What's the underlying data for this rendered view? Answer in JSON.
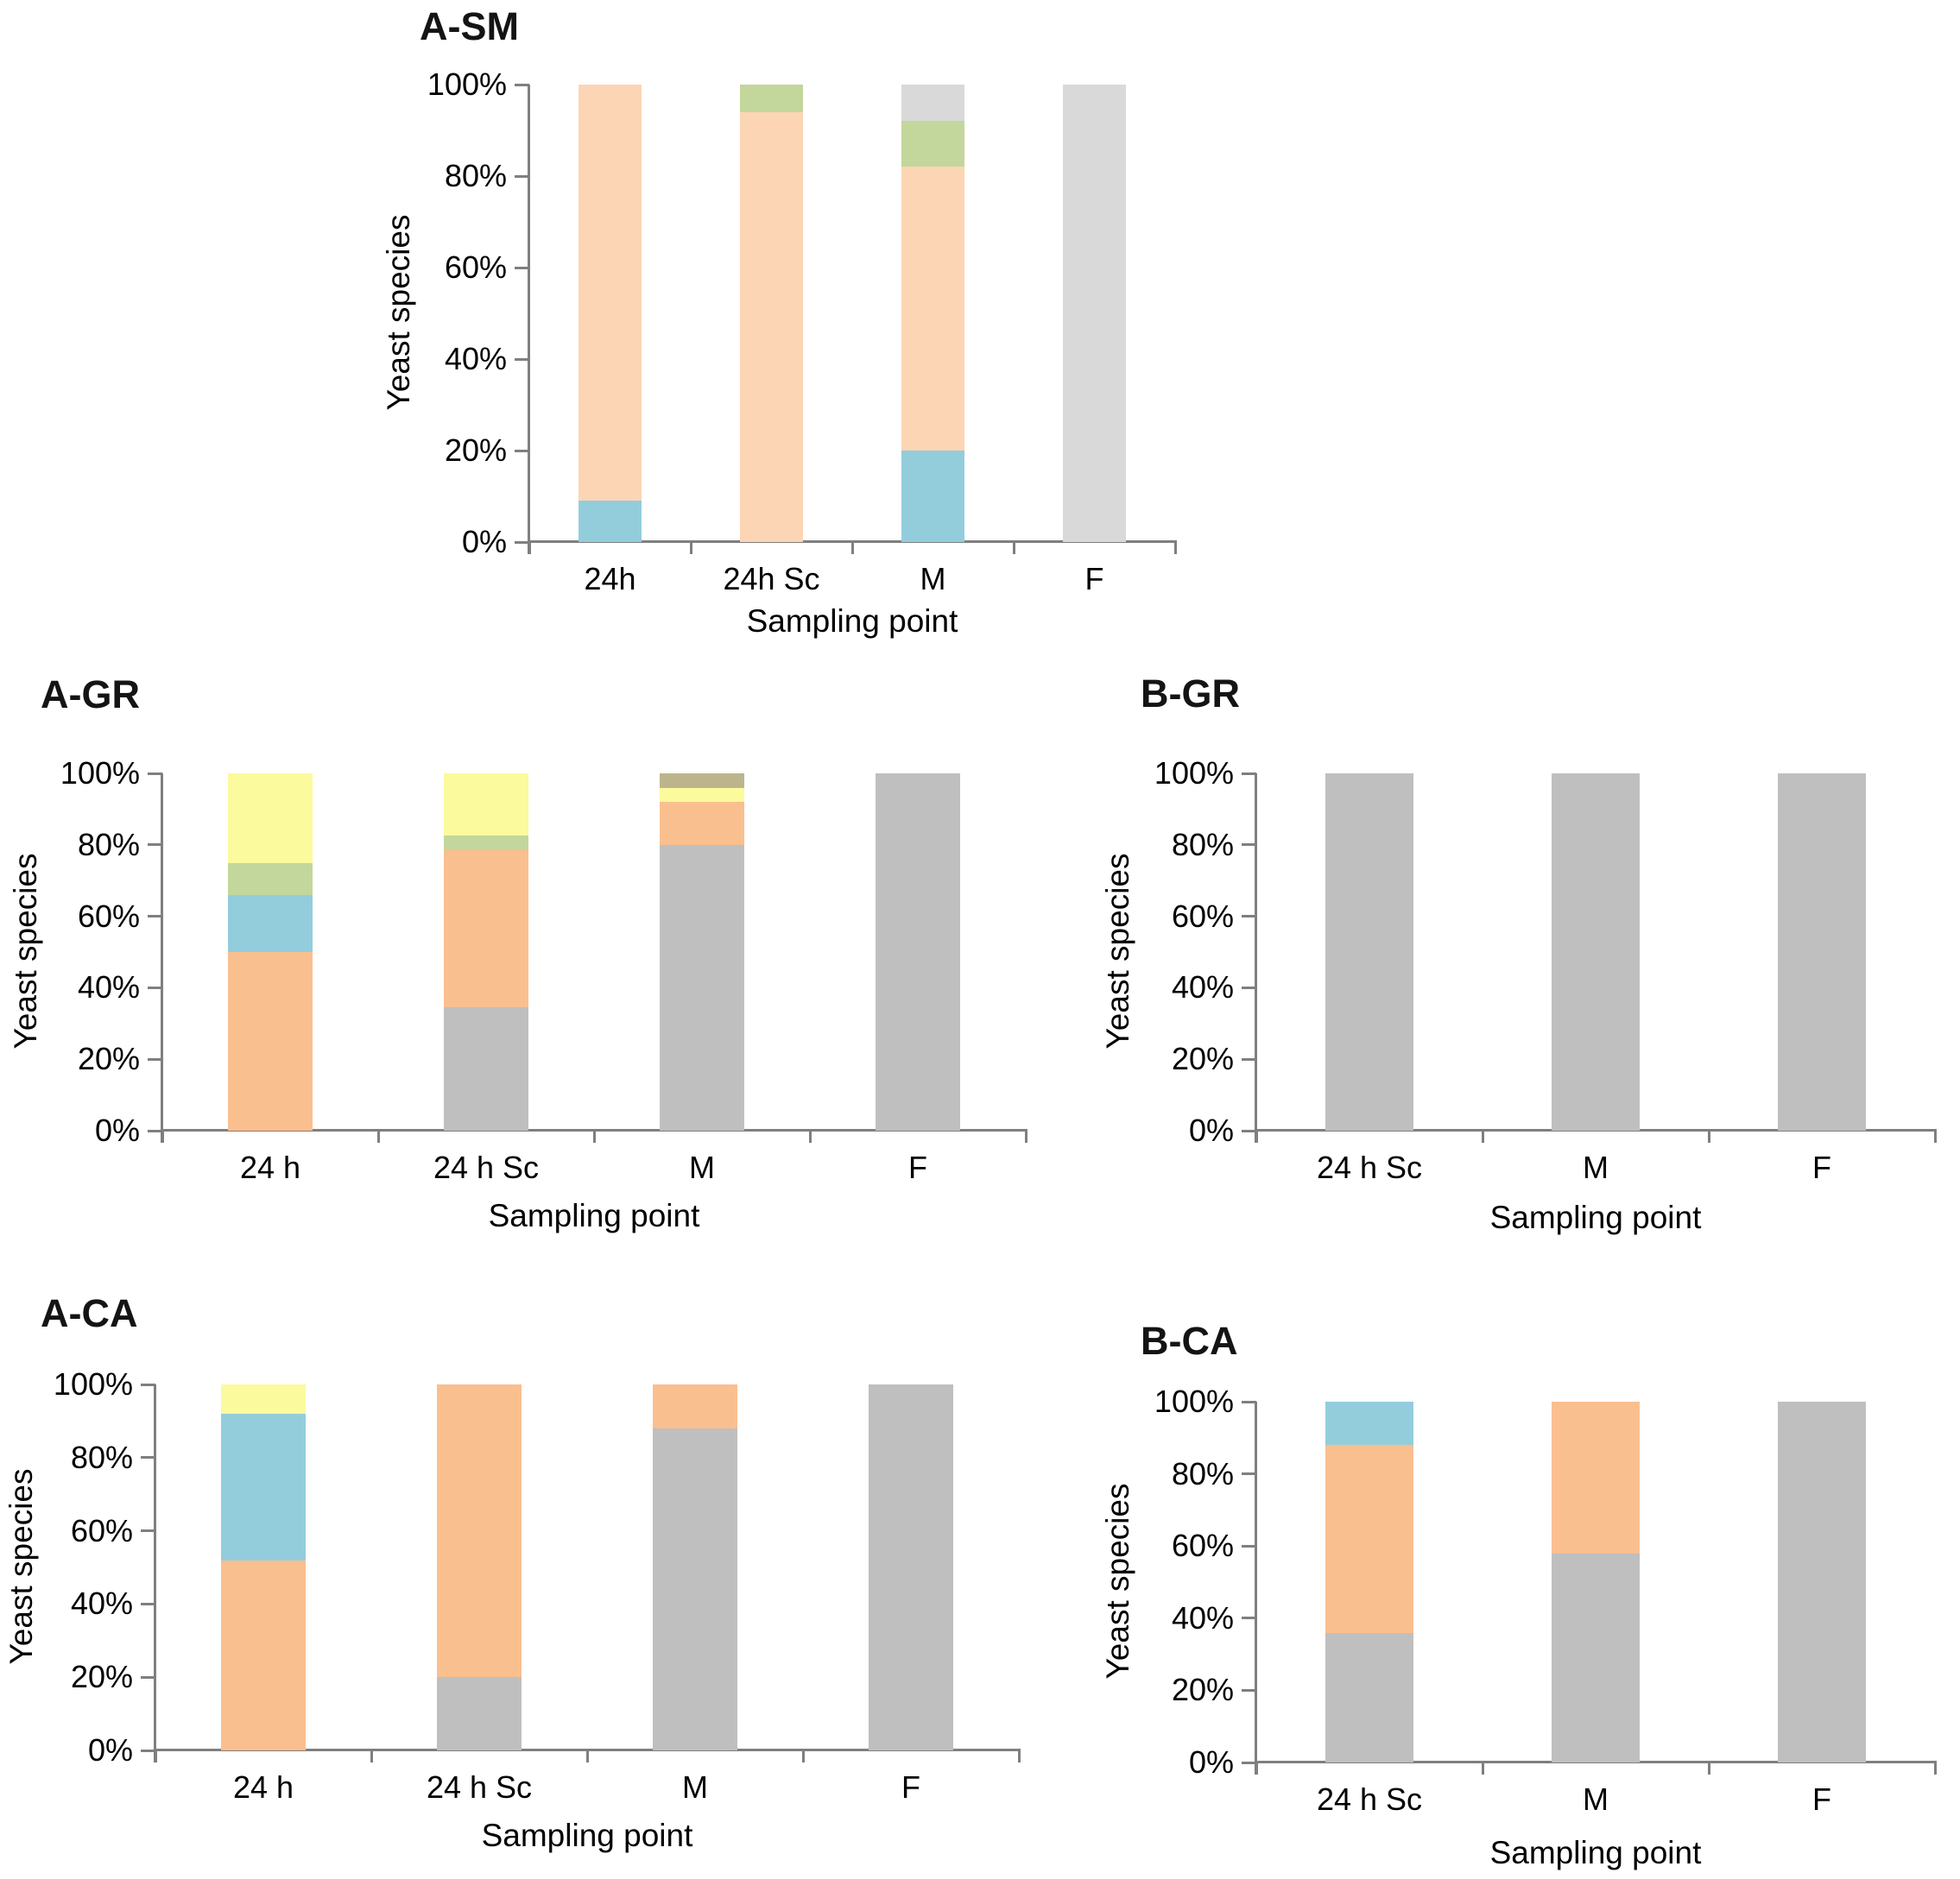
{
  "figure": {
    "background": "#FFFFFF",
    "axis_color": "#7F7F7F",
    "text_color": "#000000"
  },
  "palette": {
    "peach": "#FCD5B5",
    "orange": "#FABF8F",
    "blue": "#93CDDC",
    "green": "#C3D69B",
    "yellow": "#FBFA9D",
    "light_grey": "#D9D9D9",
    "grey": "#BFBFBF",
    "olive": "#BCB58C"
  },
  "chart_data": [
    {
      "type": "bar",
      "stacked": true,
      "unit": "percent",
      "title": "A-SM",
      "xlabel": "Sampling point",
      "ylabel": "Yeast species",
      "ylim": [
        0,
        100
      ],
      "grid": false,
      "legend": null,
      "y_ticks": [
        "0%",
        "20%",
        "40%",
        "60%",
        "80%",
        "100%"
      ],
      "categories": [
        "24h",
        "24h Sc",
        "M",
        "F"
      ],
      "series": [
        {
          "name": "blue",
          "color": "#93CDDC",
          "values": [
            9,
            0,
            20,
            0
          ]
        },
        {
          "name": "peach",
          "color": "#FCD5B5",
          "values": [
            91,
            94,
            62,
            0
          ]
        },
        {
          "name": "green",
          "color": "#C3D69B",
          "values": [
            0,
            6,
            10,
            0
          ]
        },
        {
          "name": "light-grey",
          "color": "#D9D9D9",
          "values": [
            0,
            0,
            8,
            100
          ]
        }
      ]
    },
    {
      "type": "bar",
      "stacked": true,
      "unit": "percent",
      "title": "A-GR",
      "xlabel": "Sampling point",
      "ylabel": "Yeast species",
      "ylim": [
        0,
        100
      ],
      "grid": false,
      "legend": null,
      "y_ticks": [
        "0%",
        "20%",
        "40%",
        "60%",
        "80%",
        "100%"
      ],
      "categories": [
        "24 h",
        "24 h Sc",
        "M",
        "F"
      ],
      "series": [
        {
          "name": "grey",
          "color": "#BFBFBF",
          "values": [
            0,
            34.5,
            80,
            100
          ]
        },
        {
          "name": "orange",
          "color": "#FABF8F",
          "values": [
            50,
            44,
            12,
            0
          ]
        },
        {
          "name": "blue",
          "color": "#93CDDC",
          "values": [
            16,
            0,
            0,
            0
          ]
        },
        {
          "name": "green",
          "color": "#C3D69B",
          "values": [
            9,
            4,
            0,
            0
          ]
        },
        {
          "name": "yellow",
          "color": "#FBFA9D",
          "values": [
            25,
            17.5,
            4,
            0
          ]
        },
        {
          "name": "olive",
          "color": "#BCB58C",
          "values": [
            0,
            0,
            4,
            0
          ]
        }
      ]
    },
    {
      "type": "bar",
      "stacked": true,
      "unit": "percent",
      "title": "B-GR",
      "xlabel": "Sampling point",
      "ylabel": "Yeast species",
      "ylim": [
        0,
        100
      ],
      "grid": false,
      "legend": null,
      "y_ticks": [
        "0%",
        "20%",
        "40%",
        "60%",
        "80%",
        "100%"
      ],
      "categories": [
        "24 h Sc",
        "M",
        "F"
      ],
      "series": [
        {
          "name": "grey",
          "color": "#BFBFBF",
          "values": [
            100,
            100,
            100
          ]
        }
      ]
    },
    {
      "type": "bar",
      "stacked": true,
      "unit": "percent",
      "title": "A-CA",
      "xlabel": "Sampling point",
      "ylabel": "Yeast species",
      "ylim": [
        0,
        100
      ],
      "grid": false,
      "legend": null,
      "y_ticks": [
        "0%",
        "20%",
        "40%",
        "60%",
        "80%",
        "100%"
      ],
      "categories": [
        "24 h",
        "24 h Sc",
        "M",
        "F"
      ],
      "series": [
        {
          "name": "grey",
          "color": "#BFBFBF",
          "values": [
            0,
            20,
            88,
            100
          ]
        },
        {
          "name": "orange",
          "color": "#FABF8F",
          "values": [
            52,
            80,
            12,
            0
          ]
        },
        {
          "name": "blue",
          "color": "#93CDDC",
          "values": [
            40,
            0,
            0,
            0
          ]
        },
        {
          "name": "yellow",
          "color": "#FBFA9D",
          "values": [
            8,
            0,
            0,
            0
          ]
        }
      ]
    },
    {
      "type": "bar",
      "stacked": true,
      "unit": "percent",
      "title": "B-CA",
      "xlabel": "Sampling point",
      "ylabel": "Yeast species",
      "ylim": [
        0,
        100
      ],
      "grid": false,
      "legend": null,
      "y_ticks": [
        "0%",
        "20%",
        "40%",
        "60%",
        "80%",
        "100%"
      ],
      "categories": [
        "24 h Sc",
        "M",
        "F"
      ],
      "series": [
        {
          "name": "grey",
          "color": "#BFBFBF",
          "values": [
            36,
            58,
            100
          ]
        },
        {
          "name": "orange",
          "color": "#FABF8F",
          "values": [
            52,
            42,
            0
          ]
        },
        {
          "name": "blue",
          "color": "#93CDDC",
          "values": [
            12,
            0,
            0
          ]
        }
      ]
    }
  ]
}
